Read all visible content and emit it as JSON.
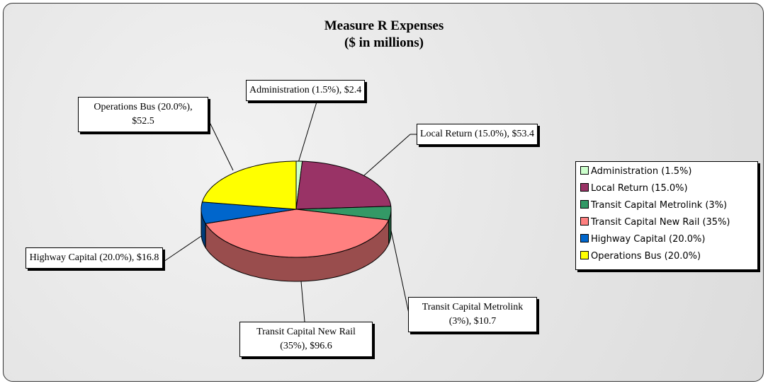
{
  "chart_data": {
    "type": "pie3d",
    "title": "Measure R Expenses",
    "subtitle": "($ in millions)",
    "categories": [
      "Administration (1.5%)",
      "Local Return (15.0%)",
      "Transit Capital Metrolink (3%)",
      "Transit Capital New Rail (35%)",
      "Highway Capital (20.0%)",
      "Operations Bus (20.0%)"
    ],
    "values": [
      2.4,
      53.4,
      10.7,
      96.6,
      16.8,
      52.5
    ],
    "value_labels": [
      "Administration (1.5%), $2.4",
      "Local Return (15.0%), $53.4",
      "Transit Capital Metrolink (3%), $10.7",
      "Transit Capital New Rail (35%), $96.6",
      "Highway Capital (20.0%), $16.8",
      "Operations Bus (20.0%), $52.5"
    ],
    "colors": [
      "#ccffcc",
      "#993366",
      "#339966",
      "#ff8080",
      "#0066cc",
      "#ffff00"
    ],
    "legend": "right"
  }
}
